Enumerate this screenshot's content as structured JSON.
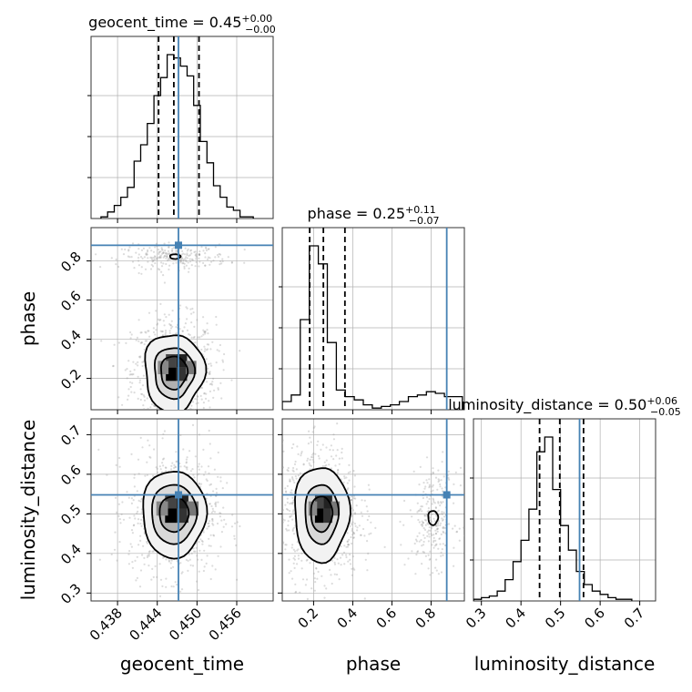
{
  "chart_data": {
    "type": "corner",
    "parameters": [
      {
        "name": "geocent_time",
        "label": "geocent_time",
        "range": [
          0.434,
          0.4615
        ],
        "ticks": [
          0.438,
          0.444,
          0.45,
          0.456
        ],
        "tick_labels": [
          "0.438",
          "0.444",
          "0.450",
          "0.456"
        ],
        "truth": 0.4472,
        "quantiles": [
          0.4442,
          0.4465,
          0.4503
        ],
        "title": {
          "main": "geocent_time = 0.45",
          "sup": "+0.00",
          "sub": "−0.00"
        },
        "hist": {
          "start": 0.4355,
          "step": 0.001,
          "counts": [
            0.01,
            0.04,
            0.08,
            0.13,
            0.19,
            0.35,
            0.45,
            0.58,
            0.75,
            0.86,
            1.0,
            0.98,
            0.93,
            0.87,
            0.69,
            0.47,
            0.34,
            0.2,
            0.13,
            0.07,
            0.05,
            0.01,
            0.01
          ]
        }
      },
      {
        "name": "phase",
        "label": "phase",
        "range": [
          0.04,
          0.97
        ],
        "ticks": [
          0.2,
          0.4,
          0.6,
          0.8
        ],
        "tick_labels": [
          "0.2",
          "0.4",
          "0.6",
          "0.8"
        ],
        "truth": 0.88,
        "quantiles": [
          0.18,
          0.25,
          0.36
        ],
        "title": {
          "main": "phase = 0.25",
          "sup": "+0.11",
          "sub": "−0.07"
        },
        "hist": {
          "start": 0.04,
          "step": 0.046,
          "counts": [
            0.05,
            0.09,
            0.55,
            1.0,
            0.89,
            0.41,
            0.12,
            0.08,
            0.06,
            0.03,
            0.01,
            0.02,
            0.03,
            0.05,
            0.08,
            0.09,
            0.11,
            0.1,
            0.08,
            0.08
          ]
        }
      },
      {
        "name": "luminosity_distance",
        "label": "luminosity_distance",
        "range": [
          0.28,
          0.74
        ],
        "ticks": [
          0.3,
          0.4,
          0.5,
          0.6,
          0.7
        ],
        "tick_labels": [
          "0.3",
          "0.4",
          "0.5",
          "0.6",
          "0.7"
        ],
        "truth": 0.548,
        "quantiles": [
          0.447,
          0.498,
          0.558
        ],
        "title": {
          "main": "luminosity_distance = 0.50",
          "sup": "+0.06",
          "sub": "−0.05"
        },
        "hist": {
          "start": 0.28,
          "step": 0.02,
          "counts": [
            0.01,
            0.02,
            0.03,
            0.06,
            0.13,
            0.24,
            0.37,
            0.56,
            0.91,
            1.0,
            0.68,
            0.46,
            0.31,
            0.18,
            0.1,
            0.06,
            0.04,
            0.02,
            0.01,
            0.01
          ]
        }
      }
    ],
    "contours": {
      "1_0": {
        "center": [
          0.4465,
          0.23
        ],
        "levels": [
          [
            0.0045,
            0.2,
            0.14
          ],
          [
            0.003,
            0.13,
            0.11
          ],
          [
            0.002,
            0.085,
            0.09
          ]
        ],
        "islands": [
          [
            0.4467,
            0.822,
            0.0008,
            0.012
          ]
        ]
      },
      "2_0": {
        "center": [
          0.4465,
          0.5
        ],
        "levels": [
          [
            0.0048,
            0.11,
            0.08
          ],
          [
            0.0034,
            0.075,
            0.06
          ],
          [
            0.0022,
            0.045,
            0.05
          ]
        ]
      },
      "2_1": {
        "center": [
          0.24,
          0.5
        ],
        "levels": [
          [
            0.14,
            0.12,
            0.1
          ],
          [
            0.085,
            0.075,
            0.07
          ],
          [
            0.055,
            0.045,
            0.06
          ]
        ],
        "islands": [
          [
            0.81,
            0.49,
            0.025,
            0.018
          ]
        ]
      }
    },
    "grid": true
  }
}
